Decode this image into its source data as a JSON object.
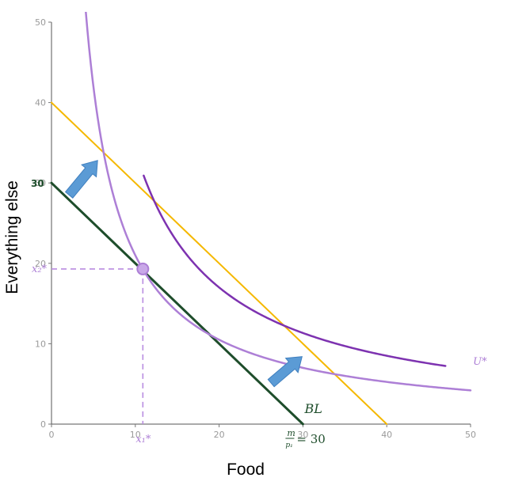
{
  "chart_data": {
    "type": "line",
    "xlabel": "Food",
    "ylabel": "Everything else",
    "xlim": [
      0,
      50
    ],
    "ylim": [
      0,
      50
    ],
    "x_ticks": [
      "0",
      "10",
      "20",
      "30",
      "40",
      "50"
    ],
    "y_ticks": [
      "0",
      "10",
      "20",
      "30",
      "40",
      "50"
    ],
    "colors": {
      "budget_line": "#1e4d2b",
      "new_budget_line": "#f5b800",
      "indifference_curve": "#ad7fd6",
      "higher_curve": "#7d32b0",
      "guide": "#b98ce0",
      "arrow": "#5b9bd5",
      "optimum": "#c9a8e8"
    },
    "series": [
      {
        "name": "BL",
        "kind": "budget",
        "points": [
          [
            0,
            30
          ],
          [
            30,
            0
          ]
        ]
      },
      {
        "name": "new budget line",
        "kind": "budget-shifted",
        "points": [
          [
            0,
            40
          ],
          [
            40,
            0
          ]
        ]
      },
      {
        "name": "U*",
        "kind": "indifference",
        "k": 210,
        "x_range": [
          2.1,
          50
        ]
      },
      {
        "name": "higher indifference curve",
        "kind": "indifference",
        "k": 340,
        "x_range": [
          11,
          47
        ]
      }
    ],
    "optimum": {
      "x": 10.9,
      "y": 19.3,
      "x_label": "x₁*",
      "y_label": "x₂*"
    },
    "annotations": {
      "bl_label": "BL",
      "u_label": "U*",
      "intercept_y": "30",
      "intercept_x_num": "m",
      "intercept_x_den": "p₁",
      "intercept_x_value": "= 30"
    },
    "arrows": [
      {
        "name": "shift-arrow-top",
        "from": [
          2.1,
          28.5
        ],
        "to": [
          5.5,
          32.8
        ]
      },
      {
        "name": "shift-arrow-bottom",
        "from": [
          26.2,
          5.1
        ],
        "to": [
          29.9,
          8.4
        ]
      }
    ]
  }
}
